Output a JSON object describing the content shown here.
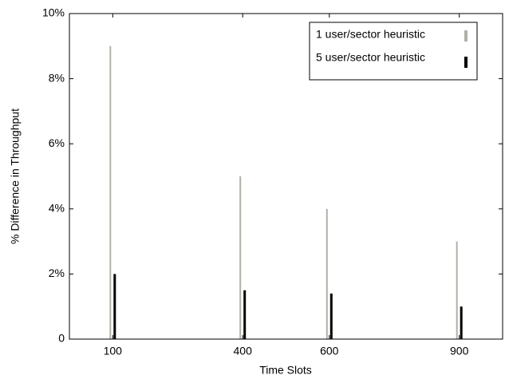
{
  "chart_data": {
    "type": "bar",
    "xlabel": "Time Slots",
    "ylabel": "% Difference in Throughput",
    "x": [
      100,
      400,
      600,
      900
    ],
    "series": [
      {
        "name": "1 user/sector heuristic",
        "color": "#b0b0a8",
        "values": [
          9,
          5,
          4,
          3
        ]
      },
      {
        "name": "5 user/sector heuristic",
        "color": "#000000",
        "values": [
          2,
          1.5,
          1.4,
          1
        ]
      }
    ],
    "xlim": [
      0,
      1000
    ],
    "xticks": [
      100,
      400,
      600,
      900
    ],
    "ylim": [
      0,
      10
    ],
    "yticks": [
      0,
      {
        "value": 2,
        "label": "2%"
      },
      {
        "value": 4,
        "label": "4%"
      },
      {
        "value": 6,
        "label": "6%"
      },
      {
        "value": 8,
        "label": "8%"
      },
      {
        "value": 10,
        "label": "10%"
      }
    ],
    "legend": "upper right"
  }
}
